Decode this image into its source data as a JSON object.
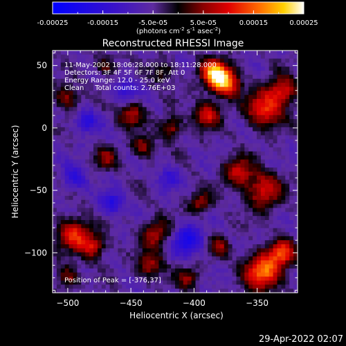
{
  "chart_data": {
    "type": "heatmap",
    "title": "Reconstructed RHESSI Image",
    "xlabel": "Heliocentric X (arcsec)",
    "ylabel": "Heliocentric Y (arcsec)",
    "xlim": [
      -512,
      -318
    ],
    "ylim": [
      -132,
      62
    ],
    "x_ticks": [
      -500,
      -450,
      -400,
      -350
    ],
    "y_ticks": [
      -100,
      -50,
      0,
      50
    ],
    "colorbar": {
      "range": [
        -0.00025,
        0.00025
      ],
      "tick_labels": [
        "-0.00025",
        "-0.00015",
        "-5.0e-05",
        "5.0e-05",
        "0.00015",
        "0.00025"
      ],
      "tick_values": [
        -0.00025,
        -0.00015,
        -5e-05,
        5e-05,
        0.00015,
        0.00025
      ],
      "units_label": "(photons cm",
      "units_exp1": "-2",
      "units_mid": " s",
      "units_exp2": "-1",
      "units_end": " asec",
      "units_exp3": "-2",
      "units_close": ")"
    },
    "annotations": [
      "11-May-2002 18:06:28.000 to 18:11:28.000",
      "Detectors: 3F 4F 5F 6F 7F 8F, Att 0",
      "Energy Range: 12.0 - 25.0 keV",
      "Clean     Total counts: 2.76E+03"
    ],
    "peak_label": "Position of Peak = [-376,37]",
    "peak": [
      -376,
      37
    ],
    "intensity_blobs": [
      {
        "x": -376,
        "y": 37,
        "sigma": 8,
        "amp": 1.0
      },
      {
        "x": -385,
        "y": 45,
        "sigma": 7,
        "amp": 0.8
      },
      {
        "x": -344,
        "y": 15,
        "sigma": 10,
        "amp": 0.7
      },
      {
        "x": -330,
        "y": 30,
        "sigma": 8,
        "amp": 0.6
      },
      {
        "x": -390,
        "y": 10,
        "sigma": 7,
        "amp": 0.6
      },
      {
        "x": -418,
        "y": 0,
        "sigma": 6,
        "amp": 0.5
      },
      {
        "x": -450,
        "y": 10,
        "sigma": 7,
        "amp": 0.5
      },
      {
        "x": -440,
        "y": -15,
        "sigma": 6,
        "amp": 0.45
      },
      {
        "x": -500,
        "y": 25,
        "sigma": 7,
        "amp": 0.45
      },
      {
        "x": -345,
        "y": -50,
        "sigma": 10,
        "amp": 0.6
      },
      {
        "x": -365,
        "y": -35,
        "sigma": 8,
        "amp": 0.55
      },
      {
        "x": -395,
        "y": -60,
        "sigma": 6,
        "amp": 0.45
      },
      {
        "x": -470,
        "y": -25,
        "sigma": 6,
        "amp": 0.4
      },
      {
        "x": -495,
        "y": -85,
        "sigma": 9,
        "amp": 0.65
      },
      {
        "x": -480,
        "y": -95,
        "sigma": 7,
        "amp": 0.55
      },
      {
        "x": -430,
        "y": -85,
        "sigma": 8,
        "amp": 0.5
      },
      {
        "x": -435,
        "y": -110,
        "sigma": 7,
        "amp": 0.5
      },
      {
        "x": -345,
        "y": -115,
        "sigma": 10,
        "amp": 0.9
      },
      {
        "x": -330,
        "y": -100,
        "sigma": 7,
        "amp": 0.7
      },
      {
        "x": -380,
        "y": -95,
        "sigma": 6,
        "amp": 0.4
      },
      {
        "x": -405,
        "y": -120,
        "sigma": 6,
        "amp": 0.4
      },
      {
        "x": -500,
        "y": -120,
        "sigma": 6,
        "amp": 0.45
      },
      {
        "x": -470,
        "y": 50,
        "sigma": 6,
        "amp": 0.35
      },
      {
        "x": -425,
        "y": 45,
        "sigma": 6,
        "amp": 0.35
      },
      {
        "x": -465,
        "y": -60,
        "sigma": 6,
        "amp": -0.5
      },
      {
        "x": -405,
        "y": -90,
        "sigma": 8,
        "amp": -0.6
      },
      {
        "x": -485,
        "y": 5,
        "sigma": 6,
        "amp": -0.45
      },
      {
        "x": -455,
        "y": 30,
        "sigma": 6,
        "amp": -0.4
      },
      {
        "x": -420,
        "y": -40,
        "sigma": 6,
        "amp": -0.35
      },
      {
        "x": -495,
        "y": -40,
        "sigma": 7,
        "amp": -0.4
      }
    ]
  },
  "footer": {
    "timestamp": "29-Apr-2022 02:07"
  }
}
